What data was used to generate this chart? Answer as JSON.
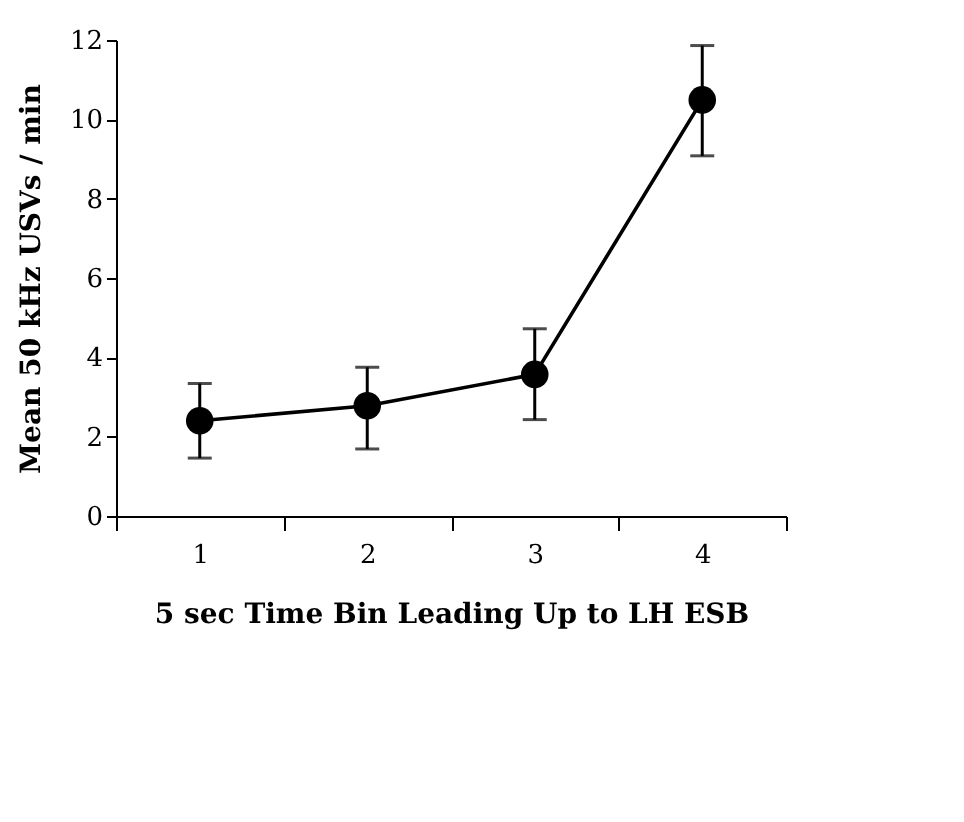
{
  "chart_data": {
    "type": "line",
    "xlabel": "5 sec Time Bin Leading Up to LH ESB",
    "ylabel": "Mean 50 kHz USVs / min",
    "categories": [
      "1",
      "2",
      "3",
      "4"
    ],
    "values": [
      2.4,
      2.78,
      3.57,
      10.49
    ],
    "errors": [
      [
        1.46,
        3.34
      ],
      [
        1.69,
        3.75
      ],
      [
        2.43,
        4.72
      ],
      [
        9.08,
        11.86
      ]
    ],
    "color": "#000000",
    "marker": "circle",
    "line_style": "solid",
    "ylim": [
      0,
      12
    ],
    "yticks": [
      0,
      2,
      4,
      6,
      8,
      10,
      12
    ],
    "grid": false
  }
}
